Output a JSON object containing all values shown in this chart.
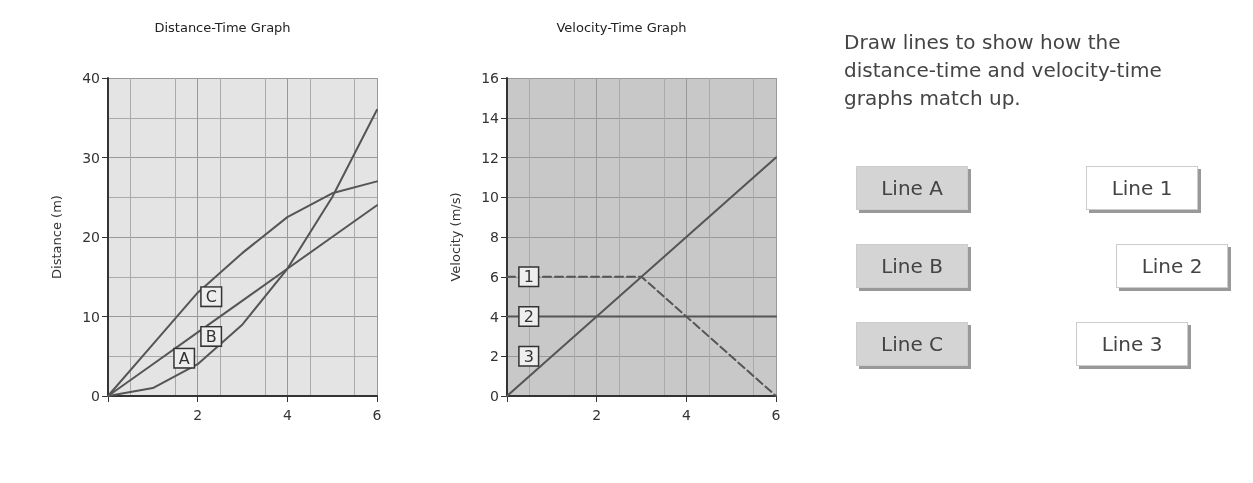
{
  "chart_data": [
    {
      "type": "line",
      "title": "Distance-Time Graph",
      "ylabel": "Distance (m)",
      "xlim": [
        0,
        6
      ],
      "xticks": [
        {
          "value": 0,
          "label": null
        },
        2,
        4,
        6
      ],
      "ylim": [
        0,
        40
      ],
      "yticks": [
        0,
        10,
        20,
        30,
        40
      ],
      "grid": true,
      "legend": false,
      "marker": "none",
      "line_style": "solid",
      "x": [
        0,
        1,
        2,
        3,
        4,
        5,
        6
      ],
      "series": [
        {
          "name": "A",
          "color": "#555555",
          "values": [
            0,
            1,
            4,
            9,
            16,
            25,
            36
          ]
        },
        {
          "name": "B",
          "color": "#555555",
          "values": [
            0,
            4,
            8,
            12,
            16,
            20,
            24
          ]
        },
        {
          "name": "C",
          "color": "#555555",
          "values": [
            0,
            6.5,
            13,
            18,
            22.5,
            25.5,
            27
          ]
        }
      ]
    },
    {
      "type": "line",
      "title": "Velocity-Time Graph",
      "ylabel": "Velocity (m/s)",
      "xlim": [
        0,
        6
      ],
      "xticks": [
        {
          "value": 0,
          "label": null
        },
        2,
        4,
        6
      ],
      "ylim": [
        0,
        16
      ],
      "yticks": [
        0,
        2,
        4,
        6,
        8,
        10,
        12,
        14,
        16
      ],
      "grid": true,
      "legend": false,
      "marker": "none",
      "series": [
        {
          "name": "1",
          "color": "#555555",
          "line_style": "dashed",
          "x": [
            0,
            1,
            3,
            6
          ],
          "values": [
            6,
            6,
            6,
            0
          ]
        },
        {
          "name": "2",
          "color": "#555555",
          "line_style": "solid",
          "x": [
            0,
            1,
            6
          ],
          "values": [
            4,
            4,
            4
          ]
        },
        {
          "name": "3",
          "color": "#555555",
          "line_style": "solid",
          "x": [
            0,
            1,
            6
          ],
          "values": [
            0,
            2,
            12
          ]
        }
      ]
    },
    {
      "type": "other",
      "title": "Draw lines to show how the distance-time and velocity-time graphs match up.",
      "annotations": [
        "Line A",
        "Line B",
        "Line C",
        "Line 1",
        "Line 2",
        "Line 3"
      ]
    }
  ]
}
